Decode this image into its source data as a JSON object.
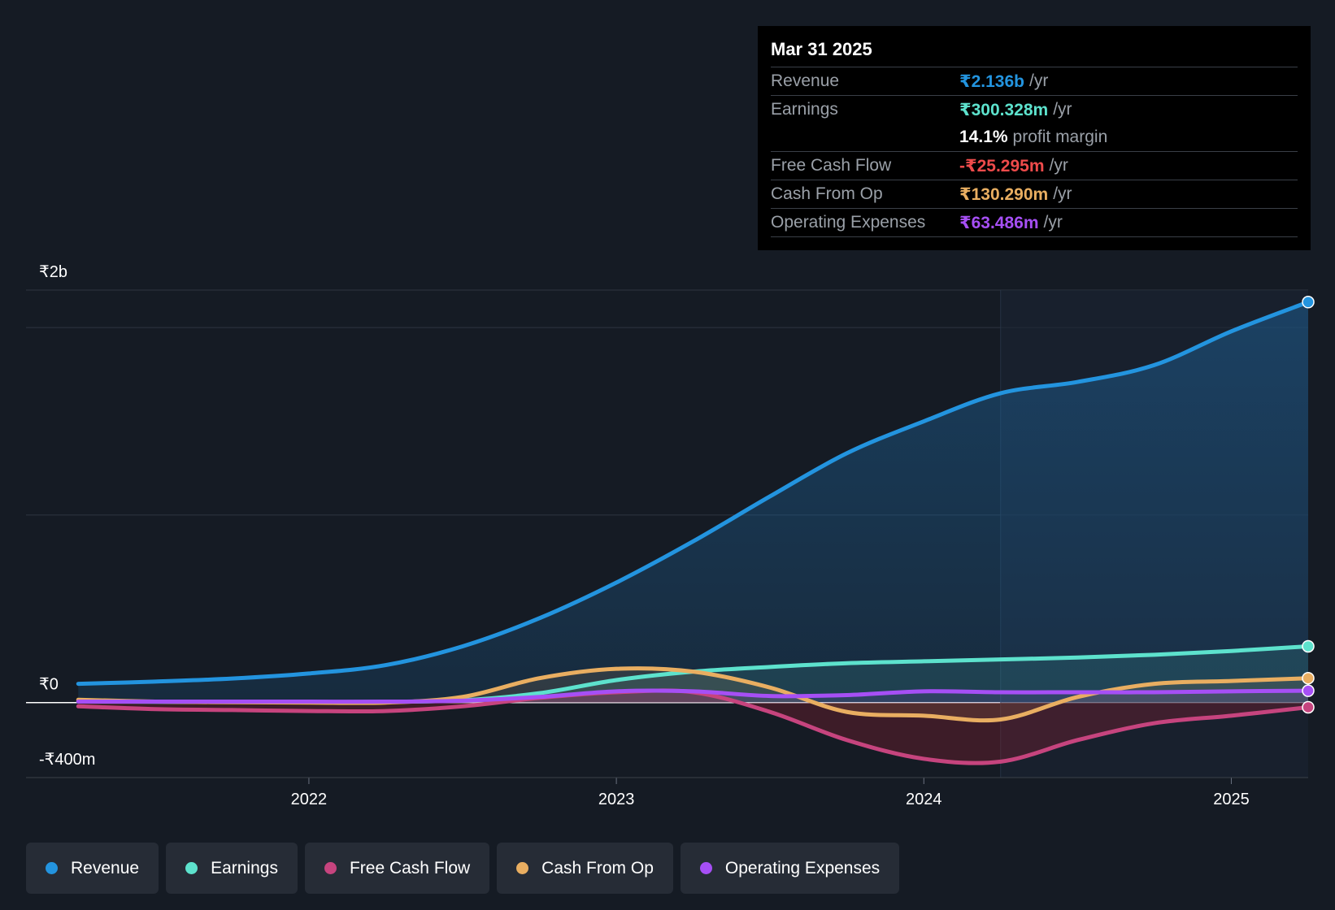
{
  "chart_data": {
    "type": "area",
    "x": [
      2021.25,
      2021.5,
      2021.75,
      2022.0,
      2022.25,
      2022.5,
      2022.75,
      2023.0,
      2023.25,
      2023.5,
      2023.75,
      2024.0,
      2024.25,
      2024.5,
      2024.75,
      2025.0,
      2025.25
    ],
    "series": [
      {
        "name": "Revenue",
        "color": "#2394df",
        "values": [
          100,
          112,
          128,
          155,
          200,
          300,
          450,
          640,
          860,
          1100,
          1330,
          1500,
          1650,
          1710,
          1800,
          1980,
          2136
        ]
      },
      {
        "name": "Earnings",
        "color": "#5de2cd",
        "values": [
          5,
          4,
          3,
          3,
          4,
          12,
          50,
          120,
          165,
          190,
          210,
          220,
          230,
          240,
          255,
          275,
          300
        ]
      },
      {
        "name": "Free Cash Flow",
        "color": "#c6447e",
        "values": [
          -20,
          -35,
          -40,
          -45,
          -45,
          -20,
          25,
          55,
          55,
          -50,
          -200,
          -300,
          -315,
          -200,
          -110,
          -70,
          -25
        ]
      },
      {
        "name": "Cash From Op",
        "color": "#e9ae61",
        "values": [
          15,
          5,
          2,
          0,
          0,
          30,
          130,
          180,
          165,
          80,
          -50,
          -70,
          -90,
          30,
          100,
          115,
          130
        ]
      },
      {
        "name": "Operating Expenses",
        "color": "#a64ff5",
        "values": [
          5,
          5,
          5,
          5,
          5,
          10,
          30,
          60,
          60,
          35,
          40,
          60,
          55,
          55,
          55,
          60,
          63
        ]
      }
    ],
    "y_ticks": [
      {
        "label": "₹2b",
        "value": 2200
      },
      {
        "label": "₹0",
        "value": 0
      },
      {
        "label": "-₹400m",
        "value": -400
      }
    ],
    "x_ticks": [
      {
        "label": "2022",
        "value": 2022.0
      },
      {
        "label": "2023",
        "value": 2023.0
      },
      {
        "label": "2024",
        "value": 2024.0
      },
      {
        "label": "2025",
        "value": 2025.0
      }
    ],
    "xlim": [
      2021.08,
      2025.25
    ],
    "ylim": [
      -400,
      2200
    ],
    "units": "₹ millions",
    "highlight_from": 2024.25,
    "grid": true
  },
  "tooltip": {
    "date": "Mar 31 2025",
    "rows": [
      {
        "label": "Revenue",
        "value": "₹2.136b",
        "unit": "/yr",
        "color": "#2394df"
      },
      {
        "label": "Earnings",
        "value": "₹300.328m",
        "unit": "/yr",
        "color": "#5de2cd"
      },
      {
        "label": "",
        "value": "14.1%",
        "unit": "profit margin",
        "color": "#ffffff"
      },
      {
        "label": "Free Cash Flow",
        "value": "-₹25.295m",
        "unit": "/yr",
        "color": "#ee4b4b"
      },
      {
        "label": "Cash From Op",
        "value": "₹130.290m",
        "unit": "/yr",
        "color": "#e9ae61"
      },
      {
        "label": "Operating Expenses",
        "value": "₹63.486m",
        "unit": "/yr",
        "color": "#a64ff5"
      }
    ]
  },
  "legend": [
    {
      "label": "Revenue",
      "color": "#2394df"
    },
    {
      "label": "Earnings",
      "color": "#5de2cd"
    },
    {
      "label": "Free Cash Flow",
      "color": "#c6447e"
    },
    {
      "label": "Cash From Op",
      "color": "#e9ae61"
    },
    {
      "label": "Operating Expenses",
      "color": "#a64ff5"
    }
  ]
}
